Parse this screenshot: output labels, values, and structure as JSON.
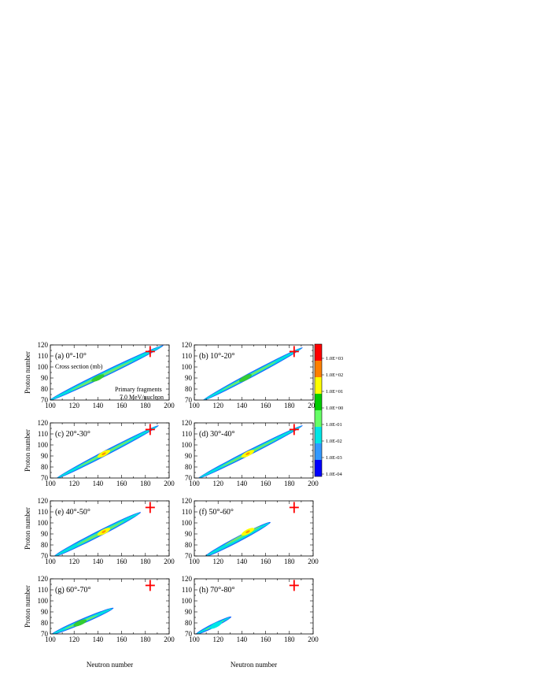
{
  "chart_data": {
    "type": "heatmap",
    "shared": {
      "xlabel": "Neutron number",
      "ylabel": "Proton number",
      "xlim": [
        100,
        200
      ],
      "ylim": [
        70,
        120
      ],
      "xticks": [
        "100",
        "120",
        "140",
        "160",
        "180",
        "200"
      ],
      "yticks": [
        "70",
        "80",
        "90",
        "100",
        "110",
        "120"
      ],
      "marker": {
        "N": 184,
        "Z": 114,
        "symbol": "+",
        "color": "#ff0000"
      }
    },
    "colorbar": {
      "scale": "log",
      "labels": [
        "1.0E+03",
        "1.0E+02",
        "1.0E+01",
        "1.0E+00",
        "1.0E-01",
        "1.0E-02",
        "1.0E-03",
        "1.0E-04"
      ],
      "colors": [
        "#ff0000",
        "#ff8000",
        "#ffff00",
        "#00cc00",
        "#66ff66",
        "#00e6e6",
        "#3399ff",
        "#0000ff"
      ]
    },
    "panels": [
      {
        "label": "(a) 0°-10°",
        "note1": "Cross section (mb)",
        "note2": "Primary fragments",
        "note3": "7.0 MeV/nucleon",
        "band": {
          "n_start": 100,
          "z_start": 70,
          "n_end": 194,
          "z_end": 119,
          "width": 3.4,
          "peak_n": 140,
          "peak_z": 90,
          "peak_level": "green"
        }
      },
      {
        "label": "(b) 10°-20°",
        "band": {
          "n_start": 108,
          "z_start": 70,
          "n_end": 190,
          "z_end": 117,
          "width": 3.0,
          "peak_n": 143,
          "peak_z": 90,
          "peak_level": "green"
        }
      },
      {
        "label": "(c) 20°-30°",
        "band": {
          "n_start": 106,
          "z_start": 70,
          "n_end": 190,
          "z_end": 117,
          "width": 3.0,
          "peak_n": 145,
          "peak_z": 92,
          "peak_level": "yellow"
        }
      },
      {
        "label": "(d) 30°-40°",
        "band": {
          "n_start": 104,
          "z_start": 70,
          "n_end": 190,
          "z_end": 117,
          "width": 3.0,
          "peak_n": 145,
          "peak_z": 92,
          "peak_level": "yellow"
        }
      },
      {
        "label": "(e) 40°-50°",
        "band": {
          "n_start": 104,
          "z_start": 70,
          "n_end": 175,
          "z_end": 109,
          "width": 3.6,
          "peak_n": 145,
          "peak_z": 92,
          "peak_level": "yellow"
        }
      },
      {
        "label": "(f) 50°-60°",
        "band": {
          "n_start": 110,
          "z_start": 70,
          "n_end": 163,
          "z_end": 100,
          "width": 3.3,
          "peak_n": 145,
          "peak_z": 92,
          "peak_level": "yellow"
        }
      },
      {
        "label": "(g) 60°-70°",
        "band": {
          "n_start": 102,
          "z_start": 70,
          "n_end": 152,
          "z_end": 93,
          "width": 3.0,
          "peak_n": 125,
          "peak_z": 80,
          "peak_level": "green"
        }
      },
      {
        "label": "(h) 70°-80°",
        "band": {
          "n_start": 102,
          "z_start": 70,
          "n_end": 130,
          "z_end": 85,
          "width": 2.2,
          "peak_n": 118,
          "peak_z": 78,
          "peak_level": "cyan"
        }
      }
    ]
  }
}
